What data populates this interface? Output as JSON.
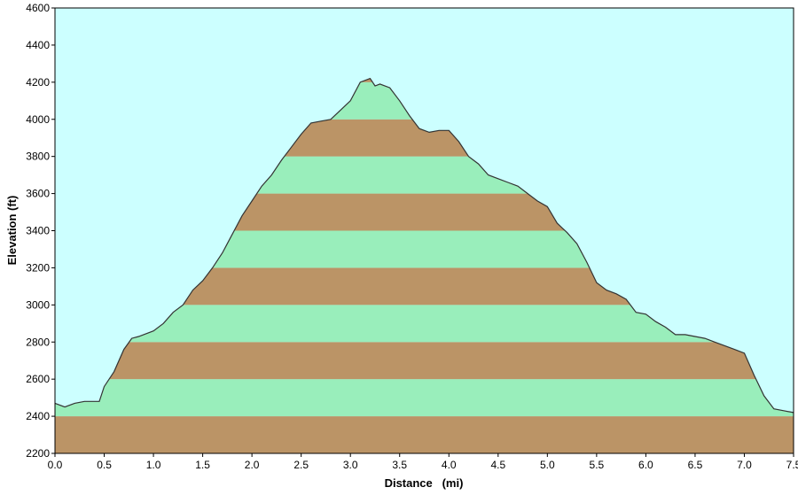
{
  "chart_data": {
    "type": "area",
    "title": "",
    "xlabel": "Distance   (mi)",
    "ylabel": "Elevation (ft)",
    "xlim": [
      0.0,
      7.5
    ],
    "ylim": [
      2200,
      4600
    ],
    "xticks": [
      "0.0",
      "0.5",
      "1.0",
      "1.5",
      "2.0",
      "2.5",
      "3.0",
      "3.5",
      "4.0",
      "4.5",
      "5.0",
      "5.5",
      "6.0",
      "6.5",
      "7.0",
      "7.5"
    ],
    "yticks": [
      "2200",
      "2400",
      "2600",
      "2800",
      "3000",
      "3200",
      "3400",
      "3600",
      "3800",
      "4000",
      "4200",
      "4400",
      "4600"
    ],
    "band_step": 200,
    "colors": {
      "background": "#ccffff",
      "band_light": "#99eebb",
      "band_dark": "#bb9466",
      "profile_line": "#333333"
    },
    "series": [
      {
        "x": [
          0.0,
          0.1,
          0.2,
          0.3,
          0.45,
          0.5,
          0.6,
          0.7,
          0.78,
          0.85,
          1.0,
          1.1,
          1.2,
          1.3,
          1.4,
          1.5,
          1.6,
          1.7,
          1.8,
          1.9,
          2.0,
          2.1,
          2.2,
          2.3,
          2.4,
          2.5,
          2.6,
          2.7,
          2.8,
          2.9,
          3.0,
          3.1,
          3.2,
          3.25,
          3.3,
          3.4,
          3.5,
          3.6,
          3.7,
          3.8,
          3.9,
          4.0,
          4.1,
          4.2,
          4.3,
          4.4,
          4.5,
          4.6,
          4.7,
          4.8,
          4.9,
          5.0,
          5.1,
          5.2,
          5.3,
          5.4,
          5.5,
          5.6,
          5.7,
          5.8,
          5.9,
          6.0,
          6.1,
          6.2,
          6.3,
          6.4,
          6.5,
          6.6,
          6.7,
          6.8,
          6.9,
          7.0,
          7.1,
          7.2,
          7.3,
          7.4,
          7.5
        ],
        "y": [
          2470,
          2450,
          2470,
          2480,
          2480,
          2560,
          2640,
          2760,
          2820,
          2830,
          2860,
          2900,
          2960,
          3000,
          3080,
          3130,
          3200,
          3280,
          3380,
          3480,
          3560,
          3640,
          3700,
          3780,
          3850,
          3920,
          3980,
          3990,
          4000,
          4050,
          4100,
          4200,
          4220,
          4180,
          4190,
          4170,
          4100,
          4020,
          3950,
          3930,
          3940,
          3940,
          3880,
          3800,
          3760,
          3700,
          3680,
          3660,
          3640,
          3600,
          3560,
          3530,
          3440,
          3390,
          3330,
          3230,
          3120,
          3080,
          3060,
          3030,
          2960,
          2950,
          2910,
          2880,
          2840,
          2840,
          2830,
          2820,
          2800,
          2780,
          2760,
          2740,
          2620,
          2510,
          2440,
          2430,
          2420
        ]
      }
    ]
  }
}
